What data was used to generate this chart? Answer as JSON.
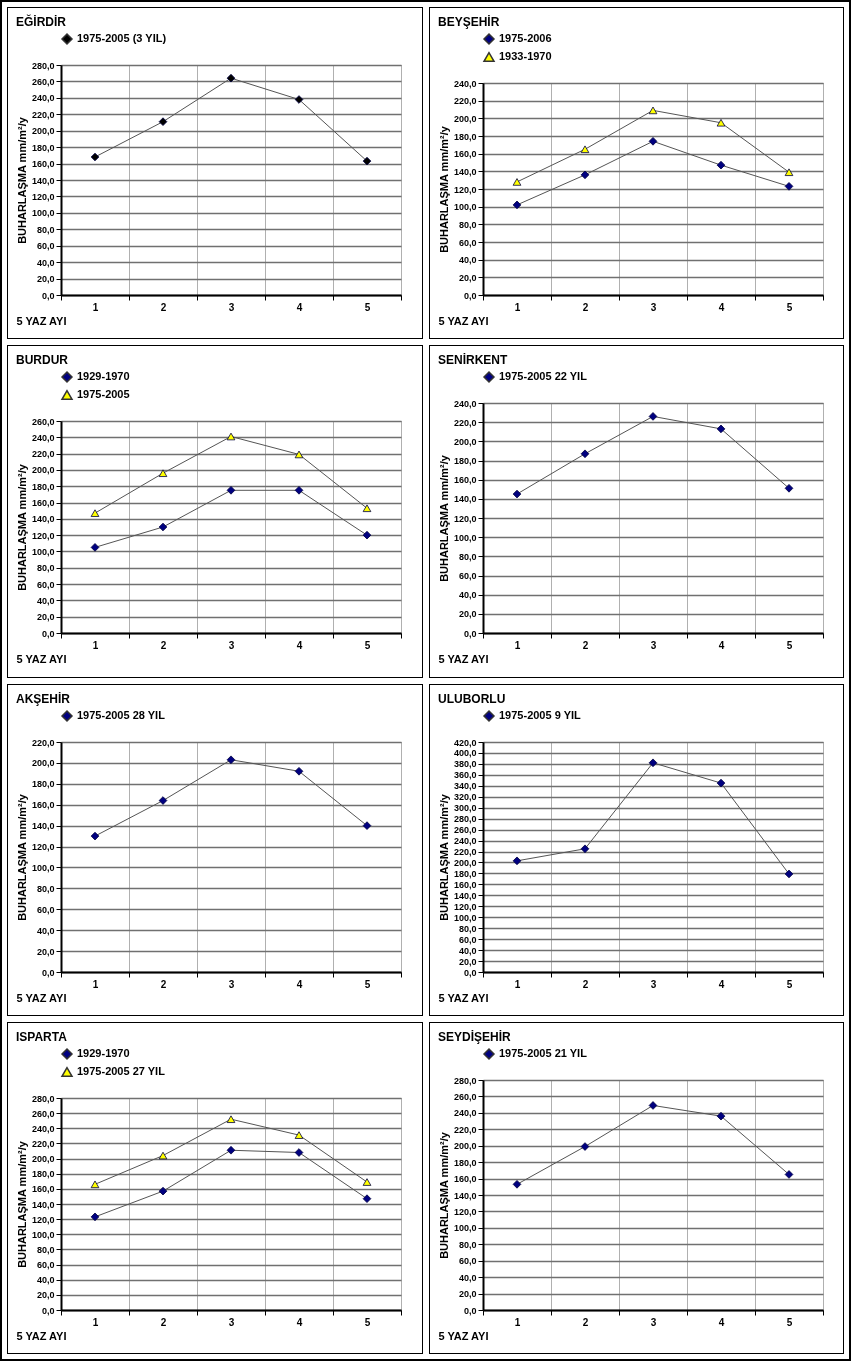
{
  "chart_data": [
    {
      "type": "line",
      "title": "EĞİRDİR",
      "xlabel": "5 YAZ AYI",
      "ylabel": "BUHARLAŞMA mm/m²/y",
      "categories": [
        "1",
        "2",
        "3",
        "4",
        "5"
      ],
      "grid": true,
      "legend": "top",
      "ylim": [
        0,
        280
      ],
      "yticks": [
        {
          "value": 0,
          "label": "0,0"
        },
        {
          "value": 20,
          "label": "20,0"
        },
        {
          "value": 40,
          "label": "40,0"
        },
        {
          "value": 60,
          "label": "60,0"
        },
        {
          "value": 80,
          "label": "80,0"
        },
        {
          "value": 100,
          "label": "100,0"
        },
        {
          "value": 120,
          "label": "120,0"
        },
        {
          "value": 140,
          "label": "140,0"
        },
        {
          "value": 160,
          "label": "160,0"
        },
        {
          "value": 180,
          "label": "180,0"
        },
        {
          "value": 200,
          "label": "200,0"
        },
        {
          "value": 220,
          "label": "220,0"
        },
        {
          "value": 240,
          "label": "240,0"
        },
        {
          "value": 260,
          "label": "260,0"
        },
        {
          "value": 280,
          "label": "280,0"
        }
      ],
      "series": [
        {
          "name": "1975-2005 (3 YIL)",
          "color": "#000000",
          "marker": "diamond",
          "values": [
            168,
            211,
            264,
            238,
            163
          ]
        }
      ]
    },
    {
      "type": "line",
      "title": "BEYŞEHİR",
      "xlabel": "5 YAZ AYI",
      "ylabel": "BUHARLAŞMA mm/m²/y",
      "categories": [
        "1",
        "2",
        "3",
        "4",
        "5"
      ],
      "grid": true,
      "legend": "top",
      "ylim": [
        0,
        240
      ],
      "yticks": [
        {
          "value": 0,
          "label": "0,0"
        },
        {
          "value": 20,
          "label": "20,0"
        },
        {
          "value": 40,
          "label": "40,0"
        },
        {
          "value": 60,
          "label": "60,0"
        },
        {
          "value": 80,
          "label": "80,0"
        },
        {
          "value": 100,
          "label": "100,0"
        },
        {
          "value": 120,
          "label": "120,0"
        },
        {
          "value": 140,
          "label": "140,0"
        },
        {
          "value": 160,
          "label": "160,0"
        },
        {
          "value": 180,
          "label": "180,0"
        },
        {
          "value": 200,
          "label": "200,0"
        },
        {
          "value": 220,
          "label": "220,0"
        },
        {
          "value": 240,
          "label": "240,0"
        }
      ],
      "series": [
        {
          "name": "1975-2006",
          "color": "#000080",
          "marker": "diamond",
          "values": [
            102,
            136,
            174,
            147,
            123
          ]
        },
        {
          "name": "1933-1970",
          "color": "#ffff00",
          "marker": "triangle",
          "values": [
            128,
            165,
            209,
            195,
            139
          ]
        }
      ]
    },
    {
      "type": "line",
      "title": "BURDUR",
      "xlabel": "5 YAZ AYI",
      "ylabel": "BUHARLAŞMA mm/m²/y",
      "categories": [
        "1",
        "2",
        "3",
        "4",
        "5"
      ],
      "grid": true,
      "legend": "top",
      "ylim": [
        0,
        260
      ],
      "yticks": [
        {
          "value": 0,
          "label": "0,0"
        },
        {
          "value": 20,
          "label": "20,0"
        },
        {
          "value": 40,
          "label": "40,0"
        },
        {
          "value": 60,
          "label": "60,0"
        },
        {
          "value": 80,
          "label": "80,0"
        },
        {
          "value": 100,
          "label": "100,0"
        },
        {
          "value": 120,
          "label": "120,0"
        },
        {
          "value": 140,
          "label": "140,0"
        },
        {
          "value": 160,
          "label": "160,0"
        },
        {
          "value": 180,
          "label": "180,0"
        },
        {
          "value": 200,
          "label": "200,0"
        },
        {
          "value": 220,
          "label": "220,0"
        },
        {
          "value": 240,
          "label": "240,0"
        },
        {
          "value": 260,
          "label": "260,0"
        }
      ],
      "series": [
        {
          "name": "1929-1970",
          "color": "#000080",
          "marker": "diamond",
          "values": [
            105,
            130,
            175,
            175,
            120
          ]
        },
        {
          "name": "1975-2005",
          "color": "#ffff00",
          "marker": "triangle",
          "values": [
            147,
            196,
            241,
            219,
            153
          ]
        }
      ]
    },
    {
      "type": "line",
      "title": "SENİRKENT",
      "xlabel": "5 YAZ AYI",
      "ylabel": "BUHARLAŞMA mm/m²/y",
      "categories": [
        "1",
        "2",
        "3",
        "4",
        "5"
      ],
      "grid": true,
      "legend": "top",
      "ylim": [
        0,
        240
      ],
      "yticks": [
        {
          "value": 0,
          "label": "0,0"
        },
        {
          "value": 20,
          "label": "20,0"
        },
        {
          "value": 40,
          "label": "40,0"
        },
        {
          "value": 60,
          "label": "60,0"
        },
        {
          "value": 80,
          "label": "80,0"
        },
        {
          "value": 100,
          "label": "100,0"
        },
        {
          "value": 120,
          "label": "120,0"
        },
        {
          "value": 140,
          "label": "140,0"
        },
        {
          "value": 160,
          "label": "160,0"
        },
        {
          "value": 180,
          "label": "180,0"
        },
        {
          "value": 200,
          "label": "200,0"
        },
        {
          "value": 220,
          "label": "220,0"
        },
        {
          "value": 240,
          "label": "240,0"
        }
      ],
      "series": [
        {
          "name": "1975-2005 22 YIL",
          "color": "#000080",
          "marker": "diamond",
          "values": [
            145,
            187,
            226,
            213,
            151
          ]
        }
      ]
    },
    {
      "type": "line",
      "title": "AKŞEHİR",
      "xlabel": "5 YAZ AYI",
      "ylabel": "BUHARLAŞMA mm/m²/y",
      "categories": [
        "1",
        "2",
        "3",
        "4",
        "5"
      ],
      "grid": true,
      "legend": "top",
      "ylim": [
        0,
        220
      ],
      "yticks": [
        {
          "value": 0,
          "label": "0,0"
        },
        {
          "value": 20,
          "label": "20,0"
        },
        {
          "value": 40,
          "label": "40,0"
        },
        {
          "value": 60,
          "label": "60,0"
        },
        {
          "value": 80,
          "label": "80,0"
        },
        {
          "value": 100,
          "label": "100,0"
        },
        {
          "value": 120,
          "label": "120,0"
        },
        {
          "value": 140,
          "label": "140,0"
        },
        {
          "value": 160,
          "label": "160,0"
        },
        {
          "value": 180,
          "label": "180,0"
        },
        {
          "value": 200,
          "label": "200,0"
        },
        {
          "value": 220,
          "label": "220,0"
        }
      ],
      "series": [
        {
          "name": "1975-2005  28 YIL",
          "color": "#000080",
          "marker": "diamond",
          "values": [
            130,
            164,
            203,
            192,
            140
          ]
        }
      ]
    },
    {
      "type": "line",
      "title": "ULUBORLU",
      "xlabel": "5 YAZ AYI",
      "ylabel": "BUHARLAŞMA mm/m²/y",
      "categories": [
        "1",
        "2",
        "3",
        "4",
        "5"
      ],
      "grid": true,
      "legend": "top",
      "ylim": [
        0,
        420
      ],
      "yticks": [
        {
          "value": 0,
          "label": "0,0"
        },
        {
          "value": 20,
          "label": "20,0"
        },
        {
          "value": 40,
          "label": "40,0"
        },
        {
          "value": 60,
          "label": "60,0"
        },
        {
          "value": 80,
          "label": "80,0"
        },
        {
          "value": 100,
          "label": "100,0"
        },
        {
          "value": 120,
          "label": "120,0"
        },
        {
          "value": 140,
          "label": "140,0"
        },
        {
          "value": 160,
          "label": "160,0"
        },
        {
          "value": 180,
          "label": "180,0"
        },
        {
          "value": 200,
          "label": "200,0"
        },
        {
          "value": 220,
          "label": "220,0"
        },
        {
          "value": 240,
          "label": "240,0"
        },
        {
          "value": 260,
          "label": "260,0"
        },
        {
          "value": 280,
          "label": "280,0"
        },
        {
          "value": 300,
          "label": "300,0"
        },
        {
          "value": 320,
          "label": "320,0"
        },
        {
          "value": 340,
          "label": "340,0"
        },
        {
          "value": 360,
          "label": "360,0"
        },
        {
          "value": 380,
          "label": "380,0"
        },
        {
          "value": 400,
          "label": "400,0"
        },
        {
          "value": 420,
          "label": "420,0"
        }
      ],
      "series": [
        {
          "name": "1975-2005  9 YIL",
          "color": "#000080",
          "marker": "diamond",
          "values": [
            203,
            225,
            382,
            345,
            179
          ]
        }
      ]
    },
    {
      "type": "line",
      "title": "ISPARTA",
      "xlabel": "5 YAZ AYI",
      "ylabel": "BUHARLAŞMA mm/m²/y",
      "categories": [
        "1",
        "2",
        "3",
        "4",
        "5"
      ],
      "grid": true,
      "legend": "top",
      "ylim": [
        0,
        280
      ],
      "yticks": [
        {
          "value": 0,
          "label": "0,0"
        },
        {
          "value": 20,
          "label": "20,0"
        },
        {
          "value": 40,
          "label": "40,0"
        },
        {
          "value": 60,
          "label": "60,0"
        },
        {
          "value": 80,
          "label": "80,0"
        },
        {
          "value": 100,
          "label": "100,0"
        },
        {
          "value": 120,
          "label": "120,0"
        },
        {
          "value": 140,
          "label": "140,0"
        },
        {
          "value": 160,
          "label": "160,0"
        },
        {
          "value": 180,
          "label": "180,0"
        },
        {
          "value": 200,
          "label": "200,0"
        },
        {
          "value": 220,
          "label": "220,0"
        },
        {
          "value": 240,
          "label": "240,0"
        },
        {
          "value": 260,
          "label": "260,0"
        },
        {
          "value": 280,
          "label": "280,0"
        }
      ],
      "series": [
        {
          "name": "1929-1970",
          "color": "#000080",
          "marker": "diamond",
          "values": [
            123,
            157,
            211,
            208,
            147
          ]
        },
        {
          "name": "1975-2005 27 YIL",
          "color": "#ffff00",
          "marker": "triangle",
          "values": [
            166,
            204,
            252,
            231,
            169
          ]
        }
      ]
    },
    {
      "type": "line",
      "title": "SEYDİŞEHİR",
      "xlabel": "5 YAZ AYI",
      "ylabel": "BUHARLAŞMA mm/m²/y",
      "categories": [
        "1",
        "2",
        "3",
        "4",
        "5"
      ],
      "grid": true,
      "legend": "top",
      "ylim": [
        0,
        280
      ],
      "yticks": [
        {
          "value": 0,
          "label": "0,0"
        },
        {
          "value": 20,
          "label": "20,0"
        },
        {
          "value": 40,
          "label": "40,0"
        },
        {
          "value": 60,
          "label": "60,0"
        },
        {
          "value": 80,
          "label": "80,0"
        },
        {
          "value": 100,
          "label": "100,0"
        },
        {
          "value": 120,
          "label": "120,0"
        },
        {
          "value": 140,
          "label": "140,0"
        },
        {
          "value": 160,
          "label": "160,0"
        },
        {
          "value": 180,
          "label": "180,0"
        },
        {
          "value": 200,
          "label": "200,0"
        },
        {
          "value": 220,
          "label": "220,0"
        },
        {
          "value": 240,
          "label": "240,0"
        },
        {
          "value": 260,
          "label": "260,0"
        },
        {
          "value": 280,
          "label": "280,0"
        }
      ],
      "series": [
        {
          "name": "1975-2005  21 YIL",
          "color": "#000080",
          "marker": "diamond",
          "values": [
            153,
            199,
            249,
            236,
            165
          ]
        }
      ]
    }
  ]
}
